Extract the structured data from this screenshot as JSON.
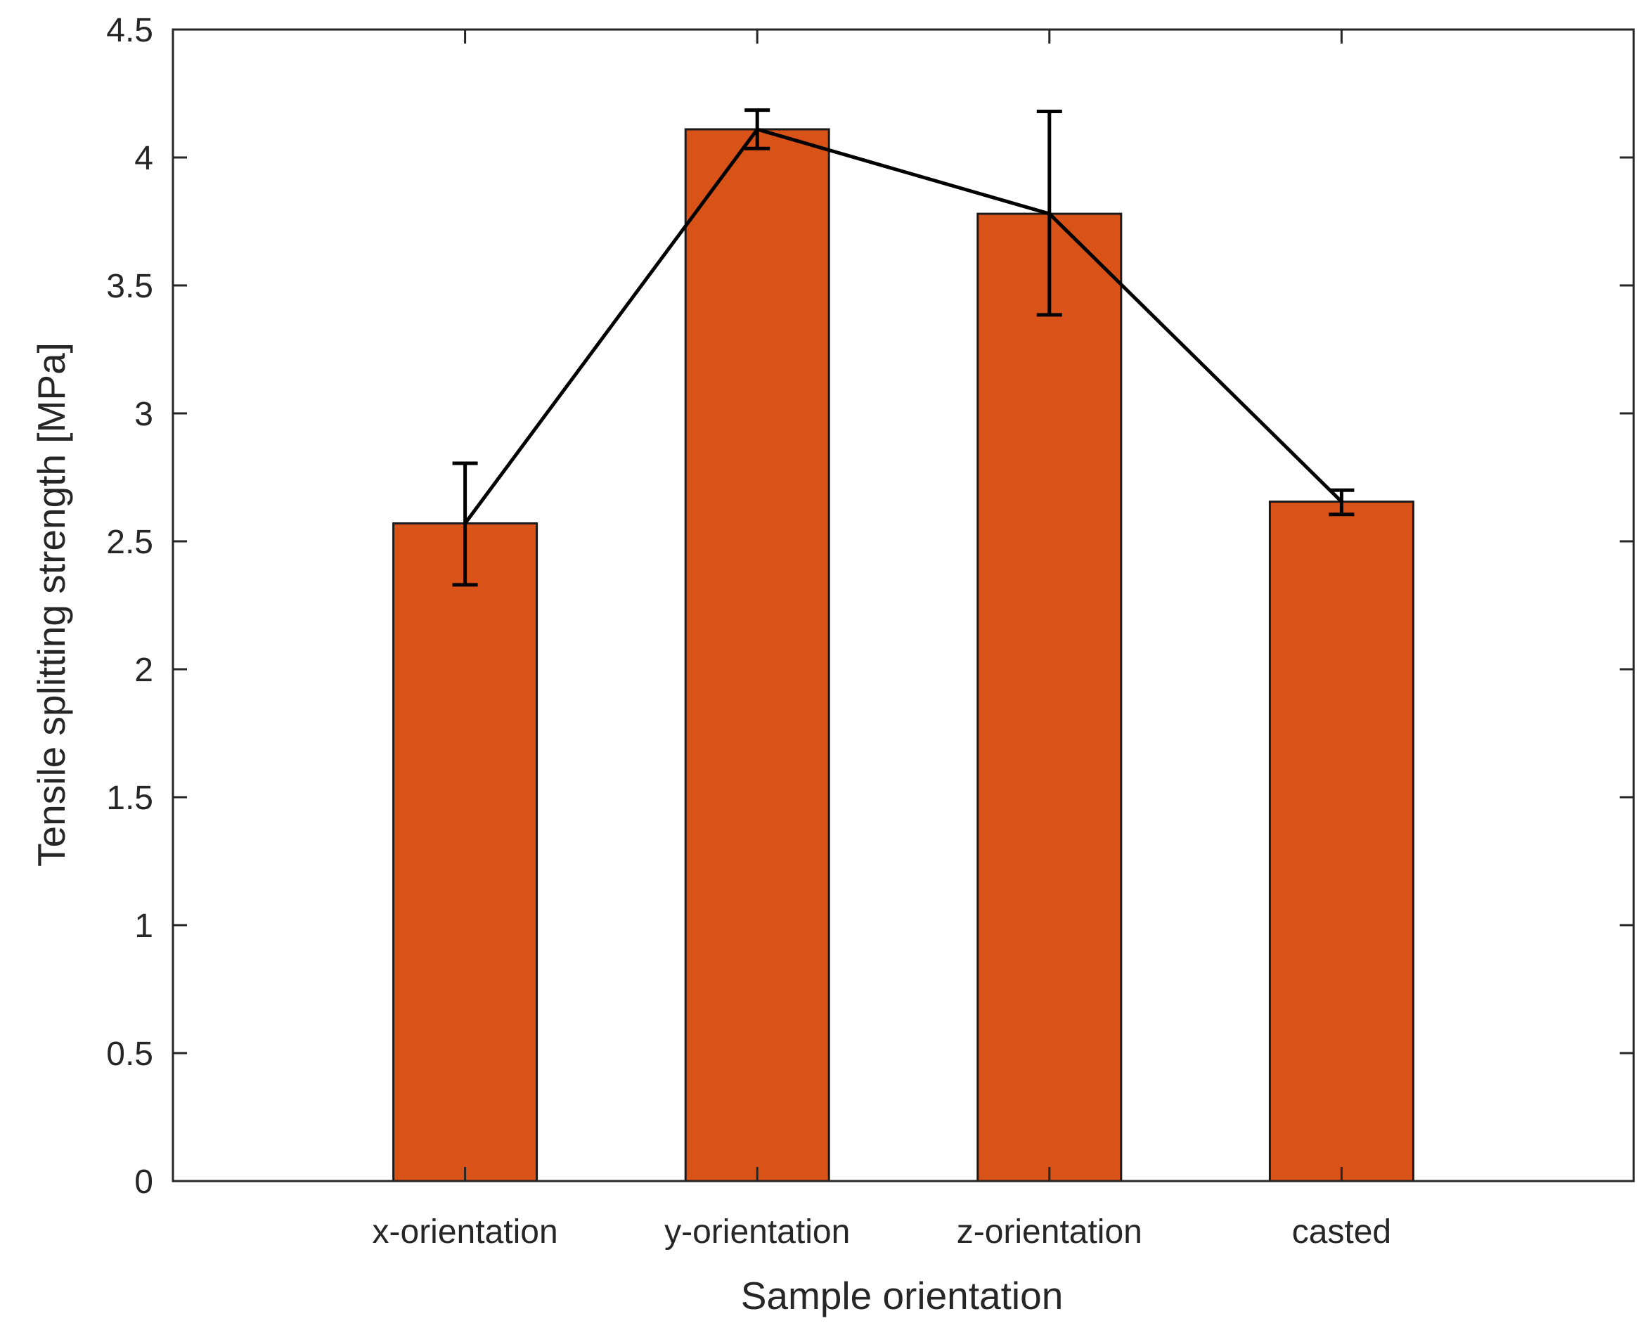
{
  "chart_data": {
    "type": "bar",
    "title": "",
    "xlabel": "Sample orientation",
    "ylabel": "Tensile splitting strength [MPa]",
    "categories": [
      "x-orientation",
      "y-orientation",
      "z-orientation",
      "casted"
    ],
    "values": [
      2.57,
      4.11,
      3.78,
      2.655
    ],
    "error_low": [
      2.33,
      4.035,
      3.385,
      2.605
    ],
    "error_high": [
      2.805,
      4.185,
      4.18,
      2.7
    ],
    "line_overlay": true,
    "ylim": [
      0,
      4.5
    ],
    "yticks": [
      0,
      0.5,
      1,
      1.5,
      2,
      2.5,
      3,
      3.5,
      4,
      4.5
    ],
    "ytick_labels": [
      "0",
      "0.5",
      "1",
      "1.5",
      "2",
      "2.5",
      "3",
      "3.5",
      "4",
      "4.5"
    ],
    "xlim": [
      0,
      5
    ],
    "grid": false,
    "colors": {
      "bar_fill": "#D95319",
      "bar_edge": "#1a1a1a",
      "line": "#000000",
      "axis": "#262626"
    }
  }
}
